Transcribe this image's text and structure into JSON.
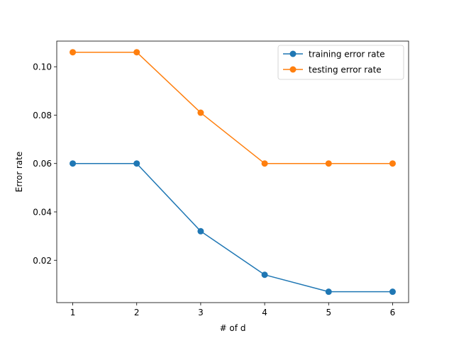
{
  "chart_data": {
    "type": "line",
    "title": "",
    "xlabel": "# of d",
    "ylabel": "Error rate",
    "x": [
      1,
      2,
      3,
      4,
      5,
      6
    ],
    "xlim": [
      0.75,
      6.25
    ],
    "ylim": [
      0.0025,
      0.1106
    ],
    "xticks": [
      1,
      2,
      3,
      4,
      5,
      6
    ],
    "yticks": [
      0.02,
      0.04,
      0.06,
      0.08,
      0.1
    ],
    "ytick_labels": [
      "0.02",
      "0.04",
      "0.06",
      "0.08",
      "0.10"
    ],
    "grid": false,
    "legend_position": "top-right",
    "series": [
      {
        "name": "training error rate",
        "color": "#1f77b4",
        "marker": "circle",
        "values": [
          0.06,
          0.06,
          0.032,
          0.014,
          0.007,
          0.007
        ]
      },
      {
        "name": "testing error rate",
        "color": "#ff7f0e",
        "marker": "circle",
        "values": [
          0.106,
          0.106,
          0.081,
          0.06,
          0.06,
          0.06
        ]
      }
    ]
  }
}
